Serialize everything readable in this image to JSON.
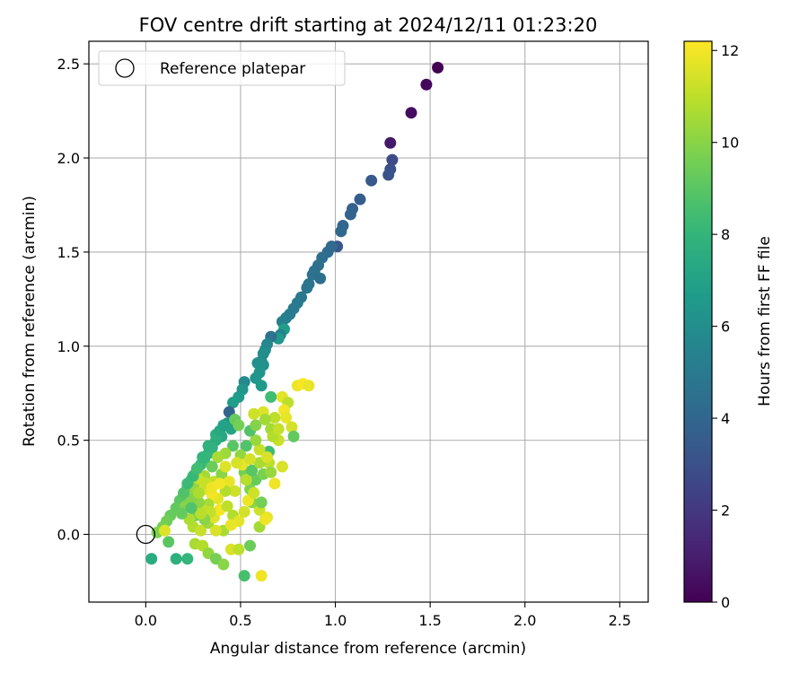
{
  "chart_data": {
    "type": "scatter",
    "title": "FOV centre drift starting at 2024/12/11 01:23:20",
    "xlabel": "Angular distance from reference (arcmin)",
    "ylabel": "Rotation from reference (arcmin)",
    "xlim": [
      -0.3,
      2.65
    ],
    "ylim": [
      -0.36,
      2.62
    ],
    "xticks": [
      0.0,
      0.5,
      1.0,
      1.5,
      2.0,
      2.5
    ],
    "xtick_labels": [
      "0.0",
      "0.5",
      "1.0",
      "1.5",
      "2.0",
      "2.5"
    ],
    "yticks": [
      0.0,
      0.5,
      1.0,
      1.5,
      2.0,
      2.5
    ],
    "ytick_labels": [
      "0.0",
      "0.5",
      "1.0",
      "1.5",
      "2.0",
      "2.5"
    ],
    "grid": true,
    "legend": {
      "placement": "upper-left",
      "entries": [
        "Reference platepar"
      ]
    },
    "reference_marker": {
      "x": 0.0,
      "y": 0.0,
      "label": "Reference platepar"
    },
    "colorbar": {
      "label": "Hours from first FF file",
      "colormap": "viridis",
      "range": [
        0,
        12.2
      ],
      "ticks": [
        0,
        2,
        4,
        6,
        8,
        10,
        12
      ],
      "tick_labels": [
        "0",
        "2",
        "4",
        "6",
        "8",
        "10",
        "12"
      ]
    },
    "points": [
      {
        "x": 1.54,
        "y": 2.48,
        "h": 0.0
      },
      {
        "x": 1.48,
        "y": 2.39,
        "h": 0.2
      },
      {
        "x": 1.4,
        "y": 2.24,
        "h": 0.4
      },
      {
        "x": 1.29,
        "y": 2.08,
        "h": 0.8
      },
      {
        "x": 1.3,
        "y": 1.99,
        "h": 2.8
      },
      {
        "x": 1.29,
        "y": 1.94,
        "h": 3.0
      },
      {
        "x": 1.28,
        "y": 1.91,
        "h": 3.1
      },
      {
        "x": 1.19,
        "y": 1.88,
        "h": 3.4
      },
      {
        "x": 1.13,
        "y": 1.78,
        "h": 3.6
      },
      {
        "x": 1.09,
        "y": 1.73,
        "h": 3.8
      },
      {
        "x": 1.08,
        "y": 1.7,
        "h": 3.9
      },
      {
        "x": 1.04,
        "y": 1.64,
        "h": 4.0
      },
      {
        "x": 1.03,
        "y": 1.61,
        "h": 4.1
      },
      {
        "x": 1.01,
        "y": 1.53,
        "h": 3.3
      },
      {
        "x": 0.98,
        "y": 1.53,
        "h": 4.2
      },
      {
        "x": 0.96,
        "y": 1.5,
        "h": 4.3
      },
      {
        "x": 0.93,
        "y": 1.47,
        "h": 4.4
      },
      {
        "x": 0.91,
        "y": 1.43,
        "h": 4.5
      },
      {
        "x": 0.89,
        "y": 1.4,
        "h": 4.5
      },
      {
        "x": 0.88,
        "y": 1.38,
        "h": 4.6
      },
      {
        "x": 0.92,
        "y": 1.36,
        "h": 4.5
      },
      {
        "x": 0.86,
        "y": 1.33,
        "h": 4.7
      },
      {
        "x": 0.85,
        "y": 1.31,
        "h": 4.8
      },
      {
        "x": 0.82,
        "y": 1.26,
        "h": 4.9
      },
      {
        "x": 0.8,
        "y": 1.23,
        "h": 5.0
      },
      {
        "x": 0.78,
        "y": 1.2,
        "h": 5.0
      },
      {
        "x": 0.76,
        "y": 1.17,
        "h": 5.1
      },
      {
        "x": 0.74,
        "y": 1.15,
        "h": 5.2
      },
      {
        "x": 0.72,
        "y": 1.13,
        "h": 5.3
      },
      {
        "x": 0.73,
        "y": 1.09,
        "h": 6.8
      },
      {
        "x": 0.71,
        "y": 1.06,
        "h": 5.4
      },
      {
        "x": 0.7,
        "y": 1.04,
        "h": 6.5
      },
      {
        "x": 0.66,
        "y": 1.05,
        "h": 4.6
      },
      {
        "x": 0.64,
        "y": 1.01,
        "h": 5.6
      },
      {
        "x": 0.63,
        "y": 0.98,
        "h": 5.8
      },
      {
        "x": 0.62,
        "y": 0.96,
        "h": 6.0
      },
      {
        "x": 0.61,
        "y": 0.92,
        "h": 5.9
      },
      {
        "x": 0.59,
        "y": 0.91,
        "h": 6.1
      },
      {
        "x": 0.62,
        "y": 0.9,
        "h": 6.2
      },
      {
        "x": 0.6,
        "y": 0.86,
        "h": 6.3
      },
      {
        "x": 0.58,
        "y": 0.83,
        "h": 6.4
      },
      {
        "x": 0.61,
        "y": 0.79,
        "h": 6.6
      },
      {
        "x": 0.52,
        "y": 0.81,
        "h": 5.8
      },
      {
        "x": 0.51,
        "y": 0.77,
        "h": 6.4
      },
      {
        "x": 0.49,
        "y": 0.73,
        "h": 6.6
      },
      {
        "x": 0.46,
        "y": 0.7,
        "h": 6.8
      },
      {
        "x": 0.44,
        "y": 0.65,
        "h": 3.9
      },
      {
        "x": 0.43,
        "y": 0.59,
        "h": 6.2
      },
      {
        "x": 0.45,
        "y": 0.56,
        "h": 7.0
      },
      {
        "x": 0.47,
        "y": 0.61,
        "h": 9.3
      },
      {
        "x": 0.49,
        "y": 0.58,
        "h": 9.6
      },
      {
        "x": 0.4,
        "y": 0.52,
        "h": 7.3
      },
      {
        "x": 0.37,
        "y": 0.5,
        "h": 7.6
      },
      {
        "x": 0.35,
        "y": 0.46,
        "h": 7.8
      },
      {
        "x": 0.33,
        "y": 0.43,
        "h": 8.0
      },
      {
        "x": 0.31,
        "y": 0.39,
        "h": 8.1
      },
      {
        "x": 0.29,
        "y": 0.37,
        "h": 8.3
      },
      {
        "x": 0.26,
        "y": 0.32,
        "h": 8.4
      },
      {
        "x": 0.24,
        "y": 0.29,
        "h": 8.6
      },
      {
        "x": 0.22,
        "y": 0.25,
        "h": 8.7
      },
      {
        "x": 0.2,
        "y": 0.21,
        "h": 8.9
      },
      {
        "x": 0.18,
        "y": 0.18,
        "h": 9.0
      },
      {
        "x": 0.16,
        "y": 0.14,
        "h": 9.2
      },
      {
        "x": 0.13,
        "y": 0.1,
        "h": 9.3
      },
      {
        "x": 0.11,
        "y": 0.07,
        "h": 9.5
      },
      {
        "x": 0.09,
        "y": 0.04,
        "h": 9.6
      },
      {
        "x": 0.06,
        "y": 0.01,
        "h": 9.8
      },
      {
        "x": 0.1,
        "y": 0.02,
        "h": 11.6
      },
      {
        "x": 0.12,
        "y": -0.04,
        "h": 9.0
      },
      {
        "x": 0.03,
        "y": -0.13,
        "h": 7.5
      },
      {
        "x": 0.16,
        "y": -0.13,
        "h": 7.7
      },
      {
        "x": 0.22,
        "y": -0.13,
        "h": 8.0
      },
      {
        "x": 0.26,
        "y": -0.05,
        "h": 10.6
      },
      {
        "x": 0.3,
        "y": -0.06,
        "h": 10.8
      },
      {
        "x": 0.33,
        "y": -0.1,
        "h": 10.2
      },
      {
        "x": 0.37,
        "y": -0.13,
        "h": 9.6
      },
      {
        "x": 0.41,
        "y": -0.16,
        "h": 10.0
      },
      {
        "x": 0.45,
        "y": -0.08,
        "h": 11.5
      },
      {
        "x": 0.49,
        "y": -0.08,
        "h": 11.0
      },
      {
        "x": 0.52,
        "y": -0.22,
        "h": 8.6
      },
      {
        "x": 0.61,
        "y": -0.22,
        "h": 11.9
      },
      {
        "x": 0.55,
        "y": -0.06,
        "h": 9.4
      },
      {
        "x": 0.6,
        "y": 0.04,
        "h": 10.5
      },
      {
        "x": 0.64,
        "y": 0.09,
        "h": 11.8
      },
      {
        "x": 0.6,
        "y": 0.13,
        "h": 11.3
      },
      {
        "x": 0.56,
        "y": 0.17,
        "h": 10.0
      },
      {
        "x": 0.55,
        "y": 0.24,
        "h": 9.8
      },
      {
        "x": 0.58,
        "y": 0.29,
        "h": 9.3
      },
      {
        "x": 0.62,
        "y": 0.32,
        "h": 9.7
      },
      {
        "x": 0.65,
        "y": 0.38,
        "h": 11.0
      },
      {
        "x": 0.68,
        "y": 0.27,
        "h": 11.9
      },
      {
        "x": 0.65,
        "y": 0.44,
        "h": 8.4
      },
      {
        "x": 0.6,
        "y": 0.45,
        "h": 11.2
      },
      {
        "x": 0.58,
        "y": 0.5,
        "h": 10.3
      },
      {
        "x": 0.55,
        "y": 0.55,
        "h": 8.8
      },
      {
        "x": 0.58,
        "y": 0.58,
        "h": 9.9
      },
      {
        "x": 0.62,
        "y": 0.65,
        "h": 11.6
      },
      {
        "x": 0.66,
        "y": 0.56,
        "h": 10.5
      },
      {
        "x": 0.68,
        "y": 0.62,
        "h": 11.0
      },
      {
        "x": 0.66,
        "y": 0.73,
        "h": 8.4
      },
      {
        "x": 0.72,
        "y": 0.73,
        "h": 11.7
      },
      {
        "x": 0.75,
        "y": 0.7,
        "h": 11.0
      },
      {
        "x": 0.73,
        "y": 0.66,
        "h": 12.0
      },
      {
        "x": 0.74,
        "y": 0.62,
        "h": 11.8
      },
      {
        "x": 0.77,
        "y": 0.57,
        "h": 11.4
      },
      {
        "x": 0.78,
        "y": 0.52,
        "h": 9.2
      },
      {
        "x": 0.72,
        "y": 0.36,
        "h": 11.5
      },
      {
        "x": 0.8,
        "y": 0.79,
        "h": 11.9
      },
      {
        "x": 0.83,
        "y": 0.8,
        "h": 12.1
      },
      {
        "x": 0.86,
        "y": 0.79,
        "h": 11.8
      },
      {
        "x": 0.7,
        "y": 0.5,
        "h": 11.2
      },
      {
        "x": 0.57,
        "y": 0.64,
        "h": 11.3
      },
      {
        "x": 0.53,
        "y": 0.47,
        "h": 8.8
      },
      {
        "x": 0.5,
        "y": 0.42,
        "h": 10.2
      },
      {
        "x": 0.46,
        "y": 0.47,
        "h": 9.0
      },
      {
        "x": 0.42,
        "y": 0.43,
        "h": 10.4
      },
      {
        "x": 0.38,
        "y": 0.41,
        "h": 10.6
      },
      {
        "x": 0.35,
        "y": 0.36,
        "h": 9.4
      },
      {
        "x": 0.31,
        "y": 0.31,
        "h": 10.5
      },
      {
        "x": 0.28,
        "y": 0.29,
        "h": 11.2
      },
      {
        "x": 0.26,
        "y": 0.24,
        "h": 10.2
      },
      {
        "x": 0.31,
        "y": 0.24,
        "h": 11.6
      },
      {
        "x": 0.36,
        "y": 0.28,
        "h": 11.0
      },
      {
        "x": 0.4,
        "y": 0.32,
        "h": 10.0
      },
      {
        "x": 0.44,
        "y": 0.28,
        "h": 11.8
      },
      {
        "x": 0.47,
        "y": 0.23,
        "h": 11.3
      },
      {
        "x": 0.52,
        "y": 0.33,
        "h": 9.6
      },
      {
        "x": 0.51,
        "y": 0.37,
        "h": 11.8
      },
      {
        "x": 0.48,
        "y": 0.38,
        "h": 11.5
      },
      {
        "x": 0.42,
        "y": 0.23,
        "h": 10.8
      },
      {
        "x": 0.38,
        "y": 0.19,
        "h": 11.7
      },
      {
        "x": 0.35,
        "y": 0.21,
        "h": 12.0
      },
      {
        "x": 0.33,
        "y": 0.16,
        "h": 10.6
      },
      {
        "x": 0.3,
        "y": 0.13,
        "h": 11.1
      },
      {
        "x": 0.28,
        "y": 0.17,
        "h": 10.1
      },
      {
        "x": 0.26,
        "y": 0.1,
        "h": 9.6
      },
      {
        "x": 0.25,
        "y": 0.04,
        "h": 10.8
      },
      {
        "x": 0.29,
        "y": 0.02,
        "h": 11.2
      },
      {
        "x": 0.33,
        "y": 0.06,
        "h": 10.4
      },
      {
        "x": 0.36,
        "y": 0.09,
        "h": 11.6
      },
      {
        "x": 0.39,
        "y": 0.13,
        "h": 12.0
      },
      {
        "x": 0.43,
        "y": 0.15,
        "h": 11.0
      },
      {
        "x": 0.46,
        "y": 0.1,
        "h": 10.8
      },
      {
        "x": 0.49,
        "y": 0.07,
        "h": 11.7
      },
      {
        "x": 0.52,
        "y": 0.12,
        "h": 11.4
      },
      {
        "x": 0.54,
        "y": 0.18,
        "h": 11.9
      },
      {
        "x": 0.57,
        "y": 0.22,
        "h": 11.3
      },
      {
        "x": 0.61,
        "y": 0.17,
        "h": 9.6
      },
      {
        "x": 0.63,
        "y": 0.08,
        "h": 11.9
      },
      {
        "x": 0.41,
        "y": 0.02,
        "h": 10.6
      },
      {
        "x": 0.45,
        "y": 0.05,
        "h": 11.8
      },
      {
        "x": 0.37,
        "y": 0.02,
        "h": 11.5
      },
      {
        "x": 0.23,
        "y": 0.08,
        "h": 10.7
      },
      {
        "x": 0.21,
        "y": 0.15,
        "h": 9.9
      },
      {
        "x": 0.19,
        "y": 0.11,
        "h": 9.3
      },
      {
        "x": 0.24,
        "y": 0.19,
        "h": 9.9
      },
      {
        "x": 0.28,
        "y": 0.22,
        "h": 10.7
      },
      {
        "x": 0.32,
        "y": 0.27,
        "h": 11.2
      },
      {
        "x": 0.35,
        "y": 0.25,
        "h": 11.9
      },
      {
        "x": 0.53,
        "y": 0.29,
        "h": 10.9
      },
      {
        "x": 0.56,
        "y": 0.34,
        "h": 9.0
      },
      {
        "x": 0.6,
        "y": 0.38,
        "h": 10.6
      },
      {
        "x": 0.64,
        "y": 0.41,
        "h": 11.5
      },
      {
        "x": 0.66,
        "y": 0.33,
        "h": 10.3
      },
      {
        "x": 0.67,
        "y": 0.52,
        "h": 10.8
      },
      {
        "x": 0.7,
        "y": 0.56,
        "h": 11.1
      },
      {
        "x": 0.63,
        "y": 0.61,
        "h": 10.5
      },
      {
        "x": 0.55,
        "y": 0.4,
        "h": 11.4
      },
      {
        "x": 0.42,
        "y": 0.36,
        "h": 11.6
      },
      {
        "x": 0.39,
        "y": 0.27,
        "h": 12.0
      },
      {
        "x": 0.34,
        "y": 0.12,
        "h": 11.1
      },
      {
        "x": 0.31,
        "y": 0.08,
        "h": 10.0
      },
      {
        "x": 0.29,
        "y": 0.11,
        "h": 10.9
      },
      {
        "x": 0.24,
        "y": 0.14,
        "h": 8.8
      },
      {
        "x": 0.2,
        "y": 0.22,
        "h": 8.8
      },
      {
        "x": 0.22,
        "y": 0.27,
        "h": 8.3
      },
      {
        "x": 0.25,
        "y": 0.31,
        "h": 8.2
      },
      {
        "x": 0.27,
        "y": 0.35,
        "h": 8.4
      },
      {
        "x": 0.3,
        "y": 0.41,
        "h": 8.0
      },
      {
        "x": 0.33,
        "y": 0.47,
        "h": 7.8
      },
      {
        "x": 0.37,
        "y": 0.53,
        "h": 7.7
      },
      {
        "x": 0.39,
        "y": 0.55,
        "h": 7.4
      },
      {
        "x": 0.41,
        "y": 0.58,
        "h": 7.0
      }
    ]
  }
}
